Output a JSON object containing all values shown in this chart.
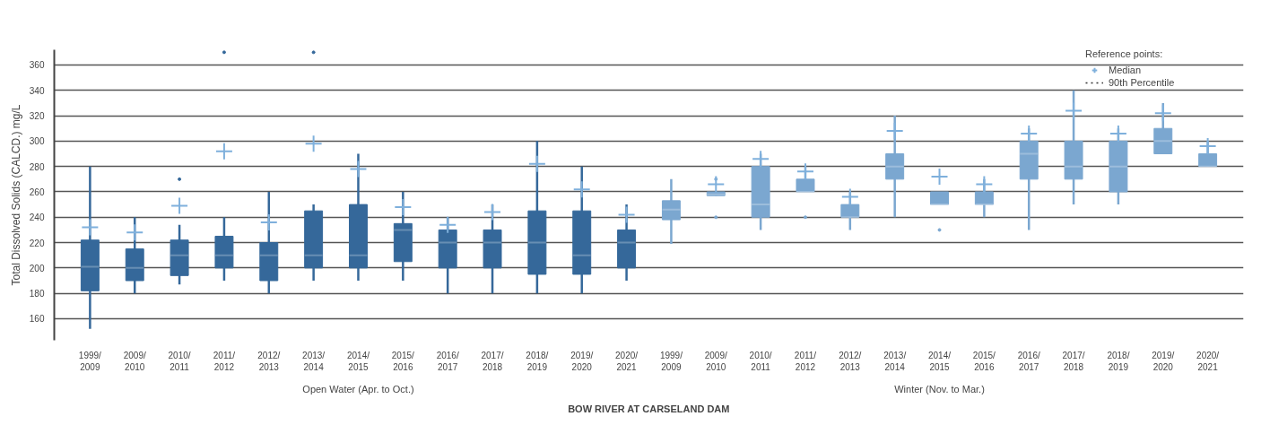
{
  "chart_data": {
    "type": "box",
    "title": "BOW RIVER AT CARSELAND DAM",
    "ylabel": "Total Dissolved Solids (CALCD.) mg/L",
    "legend_title": "Reference points:",
    "annotations": [
      "Open Water (Apr. to Oct.)",
      "Winter (Nov. to Mar.)"
    ],
    "categories": [
      "1999/2009",
      "2009/2010",
      "2010/2011",
      "2011/2012",
      "2012/2013",
      "2013/2014",
      "2014/2015",
      "2015/2016",
      "2016/2017",
      "2017/2018",
      "2018/2019",
      "2019/2020",
      "2020/2021",
      "1999/2009",
      "2009/2010",
      "2010/2011",
      "2011/2012",
      "2012/2013",
      "2013/2014",
      "2014/2015",
      "2015/2016",
      "2016/2017",
      "2017/2018",
      "2018/2019",
      "2019/2020",
      "2020/2021"
    ],
    "ylim": [
      143,
      372
    ],
    "yticks": [
      160,
      180,
      200,
      220,
      240,
      260,
      280,
      300,
      320,
      340,
      360
    ],
    "grid": "y",
    "legend": "top right",
    "series": [
      {
        "color": "#35689a",
        "boxes": [
          {
            "low": 152,
            "q1": 182,
            "median": 201,
            "q3": 222,
            "high": 280
          },
          {
            "low": 180,
            "q1": 190,
            "median": 200,
            "q3": 215,
            "high": 240
          },
          {
            "low": 187,
            "q1": 194,
            "median": 210,
            "q3": 222,
            "high": 234,
            "outliers": [
              270
            ]
          },
          {
            "low": 190,
            "q1": 200,
            "median": 210,
            "q3": 225,
            "high": 240,
            "outliers": [
              370
            ]
          },
          {
            "low": 180,
            "q1": 190,
            "median": 210,
            "q3": 220,
            "high": 260
          },
          {
            "low": 190,
            "q1": 200,
            "median": 210,
            "q3": 245,
            "high": 250,
            "outliers": [
              370
            ]
          },
          {
            "low": 190,
            "q1": 200,
            "median": 210,
            "q3": 250,
            "high": 290
          },
          {
            "low": 190,
            "q1": 205,
            "median": 230,
            "q3": 235,
            "high": 260
          },
          {
            "low": 180,
            "q1": 200,
            "median": 220,
            "q3": 230,
            "high": 240
          },
          {
            "low": 180,
            "q1": 200,
            "median": 220,
            "q3": 230,
            "high": 250
          },
          {
            "low": 180,
            "q1": 195,
            "median": 220,
            "q3": 245,
            "high": 300
          },
          {
            "low": 180,
            "q1": 195,
            "median": 210,
            "q3": 245,
            "high": 280
          },
          {
            "low": 190,
            "q1": 200,
            "median": 220,
            "q3": 230,
            "high": 250
          },
          null,
          null,
          null,
          null,
          null,
          null,
          null,
          null,
          null,
          null,
          null,
          null,
          null
        ]
      },
      {
        "color": "#7ba7d0",
        "boxes": [
          null,
          null,
          null,
          null,
          null,
          null,
          null,
          null,
          null,
          null,
          null,
          null,
          null,
          {
            "low": 219,
            "q1": 238,
            "median": 246,
            "q3": 253,
            "high": 270
          },
          {
            "low": 257,
            "q1": 257,
            "median": 258,
            "q3": 260,
            "high": 260,
            "outliers": [
              240,
              270
            ]
          },
          {
            "low": 230,
            "q1": 240,
            "median": 250,
            "q3": 280,
            "high": 290
          },
          {
            "low": 260,
            "q1": 260,
            "median": 260,
            "q3": 270,
            "high": 280,
            "outliers": [
              240
            ]
          },
          {
            "low": 230,
            "q1": 240,
            "median": 240,
            "q3": 250,
            "high": 260
          },
          {
            "low": 240,
            "q1": 270,
            "median": 280,
            "q3": 290,
            "high": 320
          },
          {
            "low": 250,
            "q1": 250,
            "median": 250,
            "q3": 260,
            "high": 260,
            "outliers": [
              230
            ]
          },
          {
            "low": 240,
            "q1": 250,
            "median": 250,
            "q3": 260,
            "high": 270
          },
          {
            "low": 230,
            "q1": 270,
            "median": 290,
            "q3": 300,
            "high": 310
          },
          {
            "low": 250,
            "q1": 270,
            "median": 280,
            "q3": 300,
            "high": 340
          },
          {
            "low": 250,
            "q1": 260,
            "median": 280,
            "q3": 300,
            "high": 310
          },
          {
            "low": 290,
            "q1": 290,
            "median": 300,
            "q3": 310,
            "high": 330
          },
          {
            "low": 280,
            "q1": 280,
            "median": 280,
            "q3": 290,
            "high": 300
          }
        ]
      },
      {
        "type": "scatter",
        "name": "Median",
        "color": "#7fb0dc",
        "marker": "cross",
        "values": [
          232,
          228,
          249,
          292,
          236,
          298,
          278,
          248,
          234,
          244,
          282,
          262,
          242,
          null,
          266,
          286,
          276,
          256,
          308,
          272,
          266,
          306,
          324,
          306,
          322,
          296
        ]
      },
      {
        "type": "scatter",
        "name": "90th Percentile",
        "color": "#333333",
        "line_style": "dotted",
        "values": [
          null,
          null,
          null,
          null,
          null,
          null,
          null,
          null,
          null,
          null,
          null,
          null,
          null,
          null,
          null,
          null,
          null,
          null,
          null,
          null,
          null,
          null,
          null,
          null,
          null,
          null
        ]
      }
    ]
  }
}
